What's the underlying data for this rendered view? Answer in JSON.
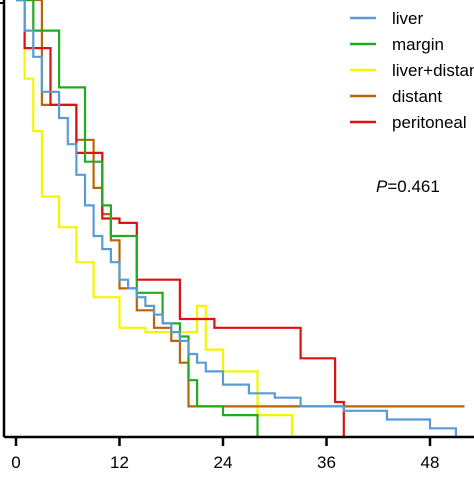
{
  "chart_data": {
    "type": "line",
    "title": "",
    "xlabel": "",
    "ylabel": "",
    "xlim": [
      0,
      52
    ],
    "ylim": [
      0,
      1
    ],
    "x_ticks": [
      0,
      12,
      24,
      36,
      48
    ],
    "x_tick_labels": [
      "0",
      "12",
      "24",
      "36",
      "48"
    ],
    "grid": false,
    "legend_position": "top-right",
    "annotation": {
      "prefix": "P",
      "text": "=0.461"
    },
    "series": [
      {
        "name": "liver",
        "color": "#5b9bd5",
        "points": [
          [
            0,
            1.0
          ],
          [
            1,
            0.93
          ],
          [
            2,
            0.87
          ],
          [
            3,
            0.79
          ],
          [
            5,
            0.73
          ],
          [
            6,
            0.67
          ],
          [
            7,
            0.6
          ],
          [
            8,
            0.53
          ],
          [
            9,
            0.46
          ],
          [
            10,
            0.43
          ],
          [
            11,
            0.4
          ],
          [
            12,
            0.36
          ],
          [
            13,
            0.34
          ],
          [
            14,
            0.32
          ],
          [
            15,
            0.3
          ],
          [
            16,
            0.28
          ],
          [
            17,
            0.26
          ],
          [
            18,
            0.24
          ],
          [
            19,
            0.22
          ],
          [
            20,
            0.19
          ],
          [
            21,
            0.17
          ],
          [
            22,
            0.15
          ],
          [
            24,
            0.12
          ],
          [
            27,
            0.1
          ],
          [
            30,
            0.09
          ],
          [
            33,
            0.07
          ],
          [
            38,
            0.06
          ],
          [
            43,
            0.04
          ],
          [
            48,
            0.02
          ],
          [
            51,
            0.0
          ]
        ]
      },
      {
        "name": "margin",
        "color": "#22aa22",
        "points": [
          [
            0,
            1.0
          ],
          [
            2,
            0.93
          ],
          [
            5,
            0.8
          ],
          [
            8,
            0.63
          ],
          [
            10,
            0.53
          ],
          [
            11,
            0.46
          ],
          [
            14,
            0.33
          ],
          [
            17,
            0.26
          ],
          [
            19,
            0.23
          ],
          [
            20,
            0.13
          ],
          [
            21,
            0.07
          ],
          [
            24,
            0.05
          ],
          [
            28,
            0.0
          ]
        ]
      },
      {
        "name": "liver+distant",
        "color": "#f5f500",
        "points": [
          [
            0,
            1.0
          ],
          [
            1,
            0.82
          ],
          [
            2,
            0.7
          ],
          [
            3,
            0.55
          ],
          [
            5,
            0.48
          ],
          [
            7,
            0.4
          ],
          [
            9,
            0.32
          ],
          [
            12,
            0.25
          ],
          [
            15,
            0.24
          ],
          [
            21,
            0.3
          ],
          [
            22,
            0.2
          ],
          [
            24,
            0.15
          ],
          [
            28,
            0.05
          ],
          [
            32,
            0.0
          ]
        ]
      },
      {
        "name": "distant",
        "color": "#b8640a",
        "points": [
          [
            0,
            1.0
          ],
          [
            3,
            0.76
          ],
          [
            7,
            0.68
          ],
          [
            9,
            0.57
          ],
          [
            10,
            0.51
          ],
          [
            11,
            0.45
          ],
          [
            12,
            0.34
          ],
          [
            14,
            0.29
          ],
          [
            16,
            0.25
          ],
          [
            18,
            0.22
          ],
          [
            19,
            0.17
          ],
          [
            20,
            0.07
          ],
          [
            52,
            0.07
          ]
        ]
      },
      {
        "name": "peritoneal",
        "color": "#dd1111",
        "points": [
          [
            0,
            1.0
          ],
          [
            1,
            0.89
          ],
          [
            4,
            0.76
          ],
          [
            7,
            0.65
          ],
          [
            10,
            0.5
          ],
          [
            12,
            0.49
          ],
          [
            14,
            0.36
          ],
          [
            19,
            0.27
          ],
          [
            23,
            0.25
          ],
          [
            33,
            0.18
          ],
          [
            37,
            0.08
          ],
          [
            38,
            0.0
          ]
        ]
      }
    ]
  }
}
